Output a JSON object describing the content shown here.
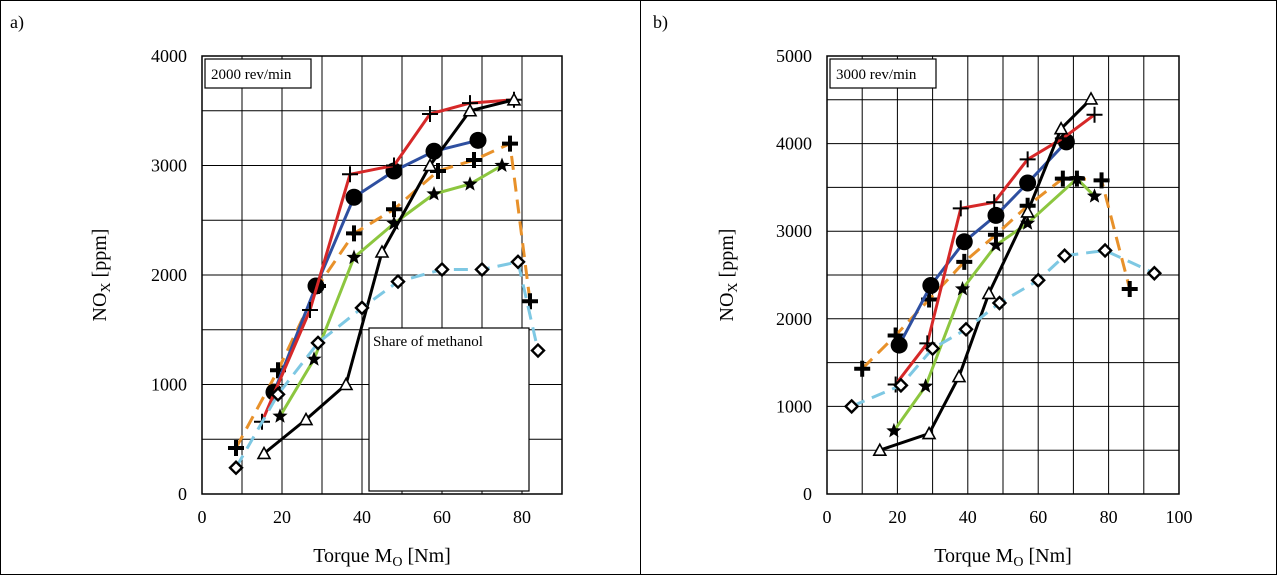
{
  "chart_data": [
    {
      "type": "line",
      "panel_label": "a)",
      "inset_label": "2000 rev/min",
      "legend_title": "Share of methanol",
      "xlabel_main": "Torque  M",
      "xlabel_sub": "O",
      "xlabel_unit": " [Nm]",
      "ylabel_main": "NO",
      "ylabel_sub": "X",
      "ylabel_unit": "  [ppm]",
      "xlim": [
        0,
        90
      ],
      "ylim": [
        0,
        4000
      ],
      "xticks": [
        0,
        20,
        40,
        60,
        80
      ],
      "yticks": [
        0,
        1000,
        2000,
        3000,
        4000
      ],
      "grid": true,
      "series": [
        {
          "color": "#e8912a",
          "dash": "dashed",
          "marker": "bold-plus",
          "x": [
            8.5,
            19,
            29,
            38,
            48,
            59,
            68,
            77,
            82
          ],
          "y": [
            420,
            1130,
            1900,
            2380,
            2600,
            2950,
            3050,
            3200,
            1760
          ]
        },
        {
          "color": "#2e4fa0",
          "dash": "solid",
          "marker": "circle",
          "x": [
            18,
            28.5,
            38,
            48,
            58,
            69
          ],
          "y": [
            930,
            1900,
            2710,
            2950,
            3130,
            3230
          ]
        },
        {
          "color": "#d62828",
          "dash": "solid",
          "marker": "plus",
          "x": [
            15,
            27,
            37,
            48,
            57,
            67,
            78
          ],
          "y": [
            660,
            1680,
            2920,
            3000,
            3470,
            3570,
            3600
          ]
        },
        {
          "color": "#8cc63f",
          "dash": "solid",
          "marker": "star",
          "x": [
            19.5,
            28,
            38,
            48,
            58,
            67,
            75
          ],
          "y": [
            710,
            1230,
            2160,
            2470,
            2740,
            2830,
            3000
          ]
        },
        {
          "color": "#000000",
          "dash": "solid",
          "marker": "triangle",
          "x": [
            15.5,
            26,
            36,
            45,
            57,
            67,
            78
          ],
          "y": [
            370,
            680,
            1000,
            2210,
            3000,
            3500,
            3600
          ]
        },
        {
          "color": "#7ec8e3",
          "dash": "dashed",
          "marker": "diamond",
          "x": [
            8.5,
            19,
            29,
            40,
            49,
            60,
            70,
            79,
            84
          ],
          "y": [
            240,
            910,
            1380,
            1700,
            1940,
            2050,
            2050,
            2120,
            1310
          ]
        }
      ]
    },
    {
      "type": "line",
      "panel_label": "b)",
      "inset_label": "3000 rev/min",
      "xlabel_main": "Torque  M",
      "xlabel_sub": "O",
      "xlabel_unit": " [Nm]",
      "ylabel_main": "NO",
      "ylabel_sub": "X",
      "ylabel_unit": "  [ppm]",
      "xlim": [
        0,
        100
      ],
      "ylim": [
        0,
        5000
      ],
      "xticks": [
        0,
        20,
        40,
        60,
        80,
        100
      ],
      "yticks": [
        0,
        1000,
        2000,
        3000,
        4000,
        5000
      ],
      "grid": true,
      "series": [
        {
          "color": "#e8912a",
          "dash": "dashed",
          "marker": "bold-plus",
          "x": [
            10,
            19.5,
            29,
            39,
            48,
            57,
            67,
            71,
            78,
            86
          ],
          "y": [
            1430,
            1810,
            2220,
            2650,
            2960,
            3290,
            3600,
            3600,
            3580,
            2340
          ]
        },
        {
          "color": "#2e4fa0",
          "dash": "solid",
          "marker": "circle",
          "x": [
            20.5,
            29.5,
            39,
            48,
            57,
            68
          ],
          "y": [
            1700,
            2380,
            2880,
            3180,
            3550,
            4020
          ]
        },
        {
          "color": "#d62828",
          "dash": "solid",
          "marker": "plus",
          "x": [
            19.5,
            28.5,
            38,
            47.5,
            57,
            67,
            76
          ],
          "y": [
            1250,
            1720,
            3260,
            3330,
            3820,
            4060,
            4330
          ]
        },
        {
          "color": "#8cc63f",
          "dash": "solid",
          "marker": "star",
          "x": [
            19,
            28,
            38.5,
            48,
            57,
            71,
            76
          ],
          "y": [
            720,
            1230,
            2340,
            2840,
            3090,
            3600,
            3400
          ]
        },
        {
          "color": "#000000",
          "dash": "solid",
          "marker": "triangle",
          "x": [
            15,
            29,
            37.5,
            46,
            57,
            66.5,
            75
          ],
          "y": [
            500,
            690,
            1340,
            2290,
            3220,
            4170,
            4510
          ]
        },
        {
          "color": "#7ec8e3",
          "dash": "dashed",
          "marker": "diamond",
          "x": [
            7,
            21,
            30,
            39.5,
            49,
            60,
            67.5,
            79,
            93
          ],
          "y": [
            1000,
            1240,
            1660,
            1880,
            2180,
            2440,
            2720,
            2780,
            2520
          ]
        }
      ]
    }
  ]
}
